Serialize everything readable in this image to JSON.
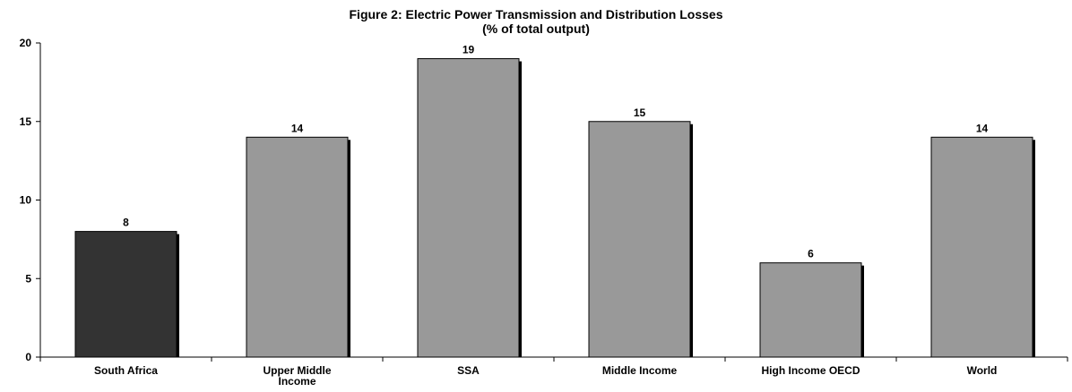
{
  "chart_data": {
    "type": "bar",
    "title": "Figure 2: Electric Power Transmission and Distribution Losses",
    "subtitle": "(% of total output)",
    "categories": [
      "South Africa",
      "Upper Middle Income",
      "SSA",
      "Middle Income",
      "High Income OECD",
      "World"
    ],
    "category_lines": [
      [
        "South Africa"
      ],
      [
        "Upper Middle",
        "Income"
      ],
      [
        "SSA"
      ],
      [
        "Middle Income"
      ],
      [
        "High Income OECD"
      ],
      [
        "World"
      ]
    ],
    "values": [
      8,
      14,
      19,
      15,
      6,
      14
    ],
    "data_labels": [
      "8",
      "14",
      "19",
      "15",
      "6",
      "14"
    ],
    "bar_colors": [
      "#333333",
      "#999999",
      "#999999",
      "#999999",
      "#999999",
      "#999999"
    ],
    "ylim": [
      0,
      20
    ],
    "yticks": [
      0,
      5,
      10,
      15,
      20
    ],
    "xlabel": "",
    "ylabel": "",
    "grid": false,
    "legend": "none"
  }
}
